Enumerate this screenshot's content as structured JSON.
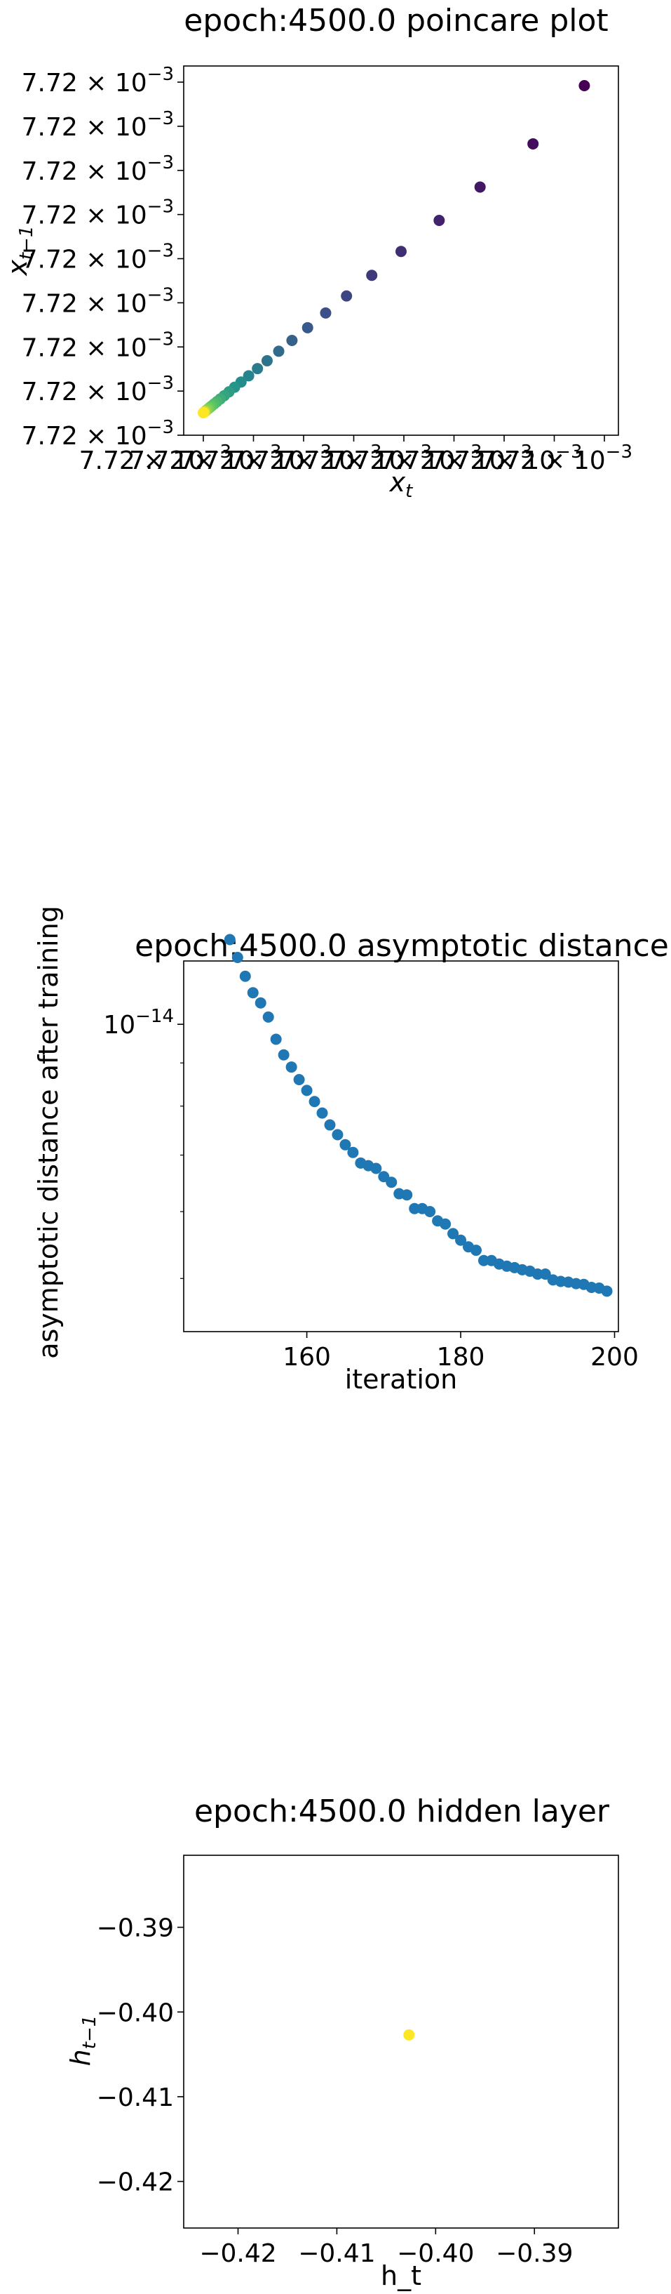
{
  "chart_data": [
    {
      "type": "scatter",
      "title": "epoch:4500.0 poincare plot",
      "xlabel": "x_t",
      "ylabel": "x_{t-1}",
      "x_tick_labels": [
        "7.72",
        "7.72",
        "7.72",
        "7.72",
        "7.72",
        "7.72",
        "7.72",
        "7.72",
        "7.72"
      ],
      "y_tick_labels": [
        "7.72",
        "7.72",
        "7.72",
        "7.72",
        "7.72",
        "7.72",
        "7.72",
        "7.72",
        "7.72"
      ],
      "tick_exponent_prefix": "× 10",
      "tick_exponent": "−3",
      "xlim": [
        0,
        1
      ],
      "ylim": [
        0,
        1
      ],
      "colormap": [
        "#440154",
        "#3b528b",
        "#21918c",
        "#5ec962",
        "#fde725"
      ],
      "x": [
        0.95,
        0.822,
        0.69,
        0.588,
        0.493,
        0.42,
        0.357,
        0.305,
        0.26,
        0.221,
        0.188,
        0.159,
        0.135,
        0.113,
        0.094,
        0.078,
        0.064,
        0.052,
        0.042,
        0.034,
        0.027,
        0.021,
        0.016,
        0.012,
        0.008,
        0.005,
        0.003,
        0.002,
        0.001,
        0.0
      ],
      "y": [
        1.0,
        0.822,
        0.69,
        0.588,
        0.493,
        0.42,
        0.357,
        0.305,
        0.26,
        0.221,
        0.188,
        0.159,
        0.135,
        0.113,
        0.094,
        0.078,
        0.064,
        0.052,
        0.042,
        0.034,
        0.027,
        0.021,
        0.016,
        0.012,
        0.008,
        0.005,
        0.003,
        0.002,
        0.001,
        0.0
      ],
      "grid": false,
      "legend": "none"
    },
    {
      "type": "scatter",
      "title": "epoch:4500.0 asymptotic distance",
      "xlabel": "iteration",
      "ylabel": "asymptotic distance after training",
      "yscale": "log",
      "x_ticks": [
        160,
        180,
        200
      ],
      "x_tick_labels": [
        "160",
        "180",
        "200"
      ],
      "y_tick_label_base": "10",
      "y_tick_label_exp": "−14",
      "xlim": [
        144,
        200.5
      ],
      "ylim_log10": [
        -14.364,
        -13.925
      ],
      "color": "#1f77b4",
      "x": [
        150,
        151,
        152,
        153,
        154,
        155,
        156,
        157,
        158,
        159,
        160,
        161,
        162,
        163,
        164,
        165,
        166,
        167,
        168,
        169,
        170,
        171,
        172,
        173,
        174,
        175,
        176,
        177,
        178,
        179,
        180,
        181,
        182,
        183,
        184,
        185,
        186,
        187,
        188,
        189,
        190,
        191,
        192,
        193,
        194,
        195,
        196,
        197,
        198,
        199
      ],
      "y": [
        1.26e-14,
        1.2e-14,
        1.14e-14,
        1.09e-14,
        1.06e-14,
        1.02e-14,
        9.6e-15,
        9.2e-15,
        8.9e-15,
        8.6e-15,
        8.35e-15,
        8.1e-15,
        7.85e-15,
        7.6e-15,
        7.4e-15,
        7.2e-15,
        7.05e-15,
        6.85e-15,
        6.8e-15,
        6.75e-15,
        6.6e-15,
        6.5e-15,
        6.3e-15,
        6.28e-15,
        6.05e-15,
        6.05e-15,
        6e-15,
        5.85e-15,
        5.8e-15,
        5.65e-15,
        5.55e-15,
        5.45e-15,
        5.4e-15,
        5.25e-15,
        5.25e-15,
        5.2e-15,
        5.17e-15,
        5.15e-15,
        5.12e-15,
        5.1e-15,
        5.06e-15,
        5.06e-15,
        4.98e-15,
        4.96e-15,
        4.95e-15,
        4.93e-15,
        4.92e-15,
        4.88e-15,
        4.87e-15,
        4.83e-15
      ],
      "grid": false,
      "legend": "none"
    },
    {
      "type": "scatter",
      "title": "epoch:4500.0 hidden layer",
      "xlabel": "h_t",
      "ylabel": "h_{t-1}",
      "x_ticks": [
        -0.42,
        -0.41,
        -0.4,
        -0.39
      ],
      "x_tick_labels": [
        "−0.42",
        "−0.41",
        "−0.40",
        "−0.39"
      ],
      "y_ticks": [
        -0.39,
        -0.4,
        -0.41,
        -0.42
      ],
      "y_tick_labels": [
        "−0.39",
        "−0.40",
        "−0.41",
        "−0.42"
      ],
      "xlim": [
        -0.4255,
        -0.3815
      ],
      "ylim": [
        -0.4255,
        -0.3815
      ],
      "color": "#fde725",
      "x": [
        -0.4027
      ],
      "y": [
        -0.4027
      ],
      "grid": false,
      "legend": "none"
    }
  ]
}
